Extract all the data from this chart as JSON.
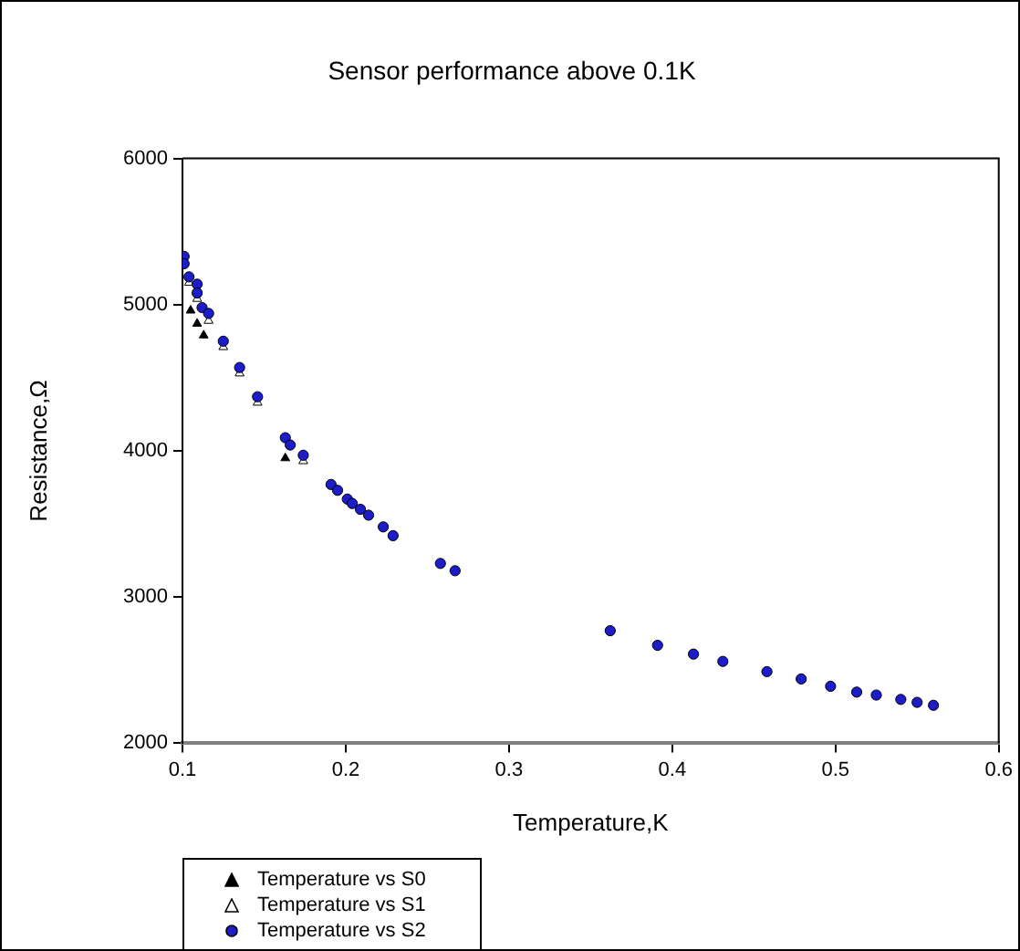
{
  "chart_data": {
    "type": "scatter",
    "title": "Sensor performance above 0.1K",
    "xlabel": "Temperature,K",
    "ylabel": "Resistance,Ω",
    "xlim": [
      0.1,
      0.6
    ],
    "xticks": [
      0.1,
      0.2,
      0.3,
      0.4,
      0.5,
      0.6
    ],
    "ylim": [
      2000,
      6000
    ],
    "yticks": [
      2000,
      3000,
      4000,
      5000,
      6000
    ],
    "grid": false,
    "legend": "bottom left",
    "series": [
      {
        "name": "Temperature vs S0",
        "color": "#000000",
        "marker": "triangle",
        "x": [
          0.105,
          0.109,
          0.113,
          0.163
        ],
        "values": [
          4960,
          4870,
          4790,
          3950
        ]
      },
      {
        "name": "Temperature vs S1",
        "color": "#ffffff",
        "marker": "triangle",
        "x": [
          0.104,
          0.109,
          0.116,
          0.125,
          0.135,
          0.146,
          0.174
        ],
        "values": [
          5150,
          5040,
          4890,
          4710,
          4530,
          4330,
          3930
        ]
      },
      {
        "name": "Temperature vs S2",
        "color": "#1c1cc8",
        "marker": "circle",
        "x": [
          0.101,
          0.101,
          0.104,
          0.109,
          0.109,
          0.112,
          0.116,
          0.125,
          0.135,
          0.146,
          0.163,
          0.166,
          0.174,
          0.191,
          0.195,
          0.201,
          0.204,
          0.209,
          0.214,
          0.223,
          0.229,
          0.258,
          0.267,
          0.362,
          0.391,
          0.413,
          0.431,
          0.458,
          0.479,
          0.497,
          0.513,
          0.525,
          0.54,
          0.55,
          0.56
        ],
        "values": [
          5330,
          5280,
          5190,
          5140,
          5080,
          4980,
          4940,
          4750,
          4570,
          4370,
          4090,
          4040,
          3970,
          3770,
          3730,
          3670,
          3640,
          3600,
          3560,
          3480,
          3420,
          3230,
          3180,
          2770,
          2670,
          2610,
          2560,
          2490,
          2440,
          2390,
          2350,
          2330,
          2300,
          2280,
          2260
        ]
      }
    ]
  }
}
